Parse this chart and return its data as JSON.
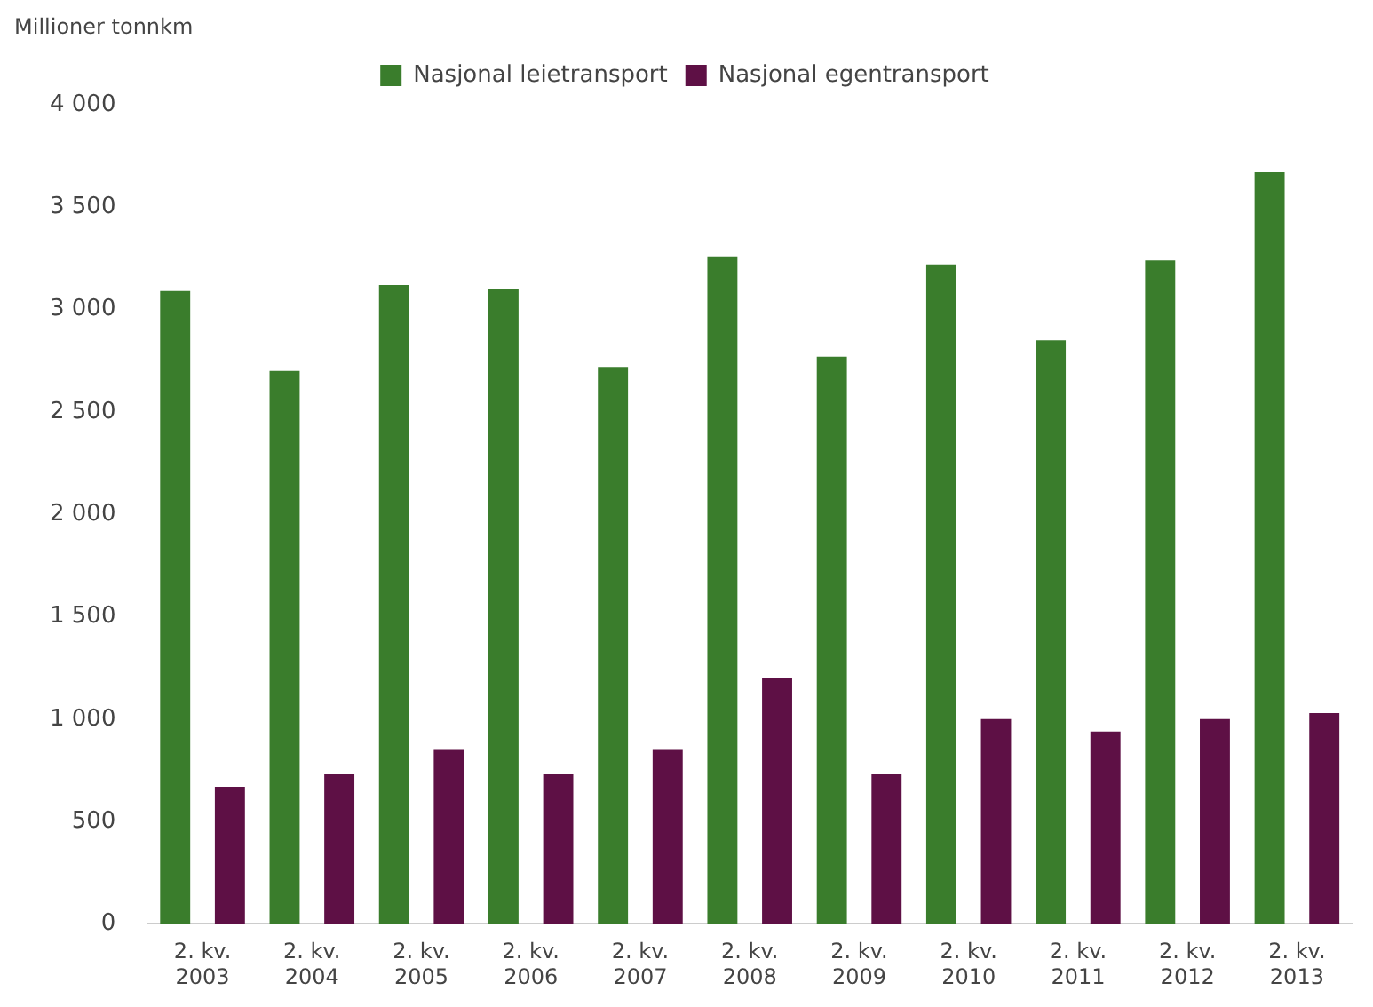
{
  "chart_data": {
    "type": "bar",
    "ylabel": "Millioner tonnkm",
    "categories": [
      "2. kv. 2003",
      "2. kv. 2004",
      "2. kv. 2005",
      "2. kv. 2006",
      "2. kv. 2007",
      "2. kv. 2008",
      "2. kv. 2009",
      "2. kv. 2010",
      "2. kv. 2011",
      "2. kv. 2012",
      "2. kv. 2013"
    ],
    "series": [
      {
        "name": "Nasjonal leietransport",
        "color": "#3a7d2c",
        "values": [
          3090,
          2700,
          3120,
          3100,
          2720,
          3260,
          2770,
          3220,
          2850,
          3240,
          3670
        ]
      },
      {
        "name": "Nasjonal egentransport",
        "color": "#5e1045",
        "values": [
          670,
          730,
          850,
          730,
          850,
          1200,
          730,
          1000,
          940,
          1000,
          1030
        ]
      }
    ],
    "ylim": [
      0,
      4000
    ],
    "yticks": [
      0,
      {
        "value": 500,
        "label": "500"
      },
      {
        "value": 1000,
        "label": "1 000"
      },
      {
        "value": 1500,
        "label": "1 500"
      },
      {
        "value": 2000,
        "label": "2 000"
      },
      {
        "value": 2500,
        "label": "2 500"
      },
      {
        "value": 3000,
        "label": "3 000"
      },
      {
        "value": 3500,
        "label": "3 500"
      },
      {
        "value": 4000,
        "label": "4 000"
      }
    ],
    "grid": false,
    "legend": "top"
  }
}
